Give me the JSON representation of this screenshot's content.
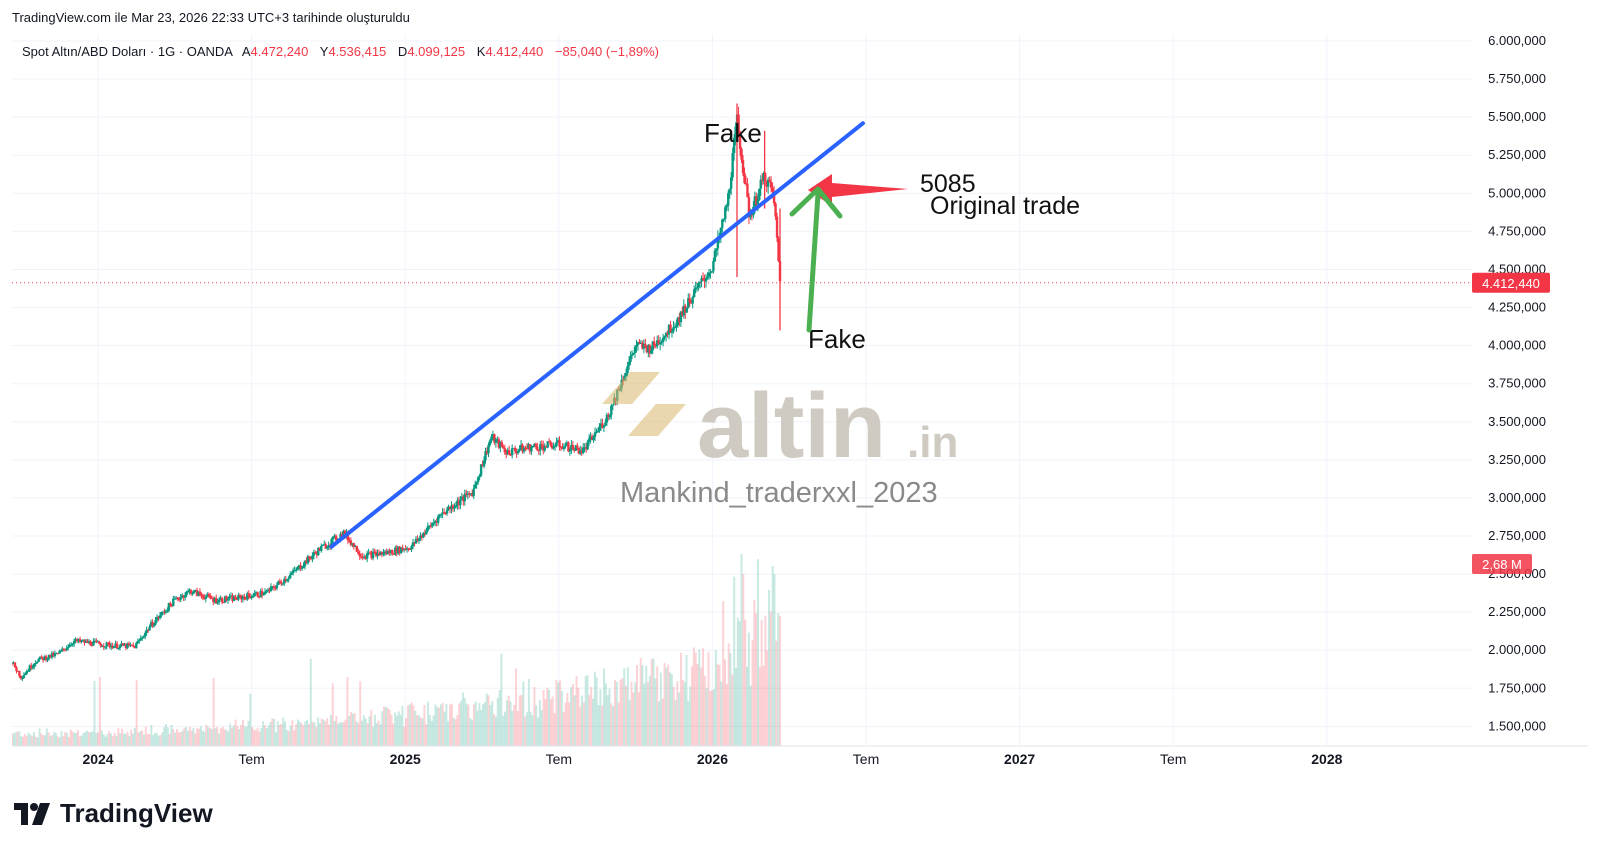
{
  "header": {
    "created_text": "TradingView.com ile Mar 23, 2026 22:33 UTC+3 tarihinde oluşturuldu"
  },
  "symbol_bar": {
    "symbol": "Spot Altın/ABD Doları · 1G · OANDA",
    "open_key": "A",
    "open_val": "4.472,240",
    "high_key": "Y",
    "high_val": "4.536,415",
    "low_key": "D",
    "low_val": "4.099,125",
    "close_key": "K",
    "close_val": "4.412,440",
    "change": "−85,040 (−1,89%)"
  },
  "colors": {
    "up": "#089981",
    "down": "#f23645",
    "trendline": "#2962ff",
    "arrow_red": "#f23645",
    "arrow_green": "#4caf50",
    "watermark_gold": "#d9b66b",
    "watermark_gray": "#c8c2b8",
    "price_label_bg": "#f23645"
  },
  "annotations": {
    "fake_top": "Fake",
    "fake_bottom": "Fake",
    "level": "5085",
    "original_trade": "Original trade"
  },
  "watermark": {
    "brand": "altin",
    "brand_suffix": ".in",
    "author": "Mankind_traderxxl_2023"
  },
  "price_labels": {
    "last_price": "4.412,440",
    "volume": "2,68 M"
  },
  "footer": {
    "brand": "TradingView"
  },
  "chart_data": {
    "type": "candlestick",
    "y_ticks": [
      "6.000,000",
      "5.750,000",
      "5.500,000",
      "5.250,000",
      "5.000,000",
      "4.750,000",
      "4.500,000",
      "4.250,000",
      "4.000,000",
      "3.750,000",
      "3.500,000",
      "3.250,000",
      "3.000,000",
      "2.750,000",
      "2.500,000",
      "2.250,000",
      "2.000,000",
      "1.750,000",
      "1.500,000"
    ],
    "y_tick_values": [
      6000,
      5750,
      5500,
      5250,
      5000,
      4750,
      4500,
      4250,
      4000,
      3750,
      3500,
      3250,
      3000,
      2750,
      2500,
      2250,
      2000,
      1750,
      1500
    ],
    "ylim": [
      1450,
      6000
    ],
    "x_ticks": [
      {
        "label": "2024",
        "t": 2024.0,
        "bold": true
      },
      {
        "label": "Tem",
        "t": 2024.5,
        "bold": false
      },
      {
        "label": "2025",
        "t": 2025.0,
        "bold": true
      },
      {
        "label": "Tem",
        "t": 2025.5,
        "bold": false
      },
      {
        "label": "2026",
        "t": 2026.0,
        "bold": true
      },
      {
        "label": "Tem",
        "t": 2026.5,
        "bold": false
      },
      {
        "label": "2027",
        "t": 2027.0,
        "bold": true
      },
      {
        "label": "Tem",
        "t": 2027.5,
        "bold": false
      },
      {
        "label": "2028",
        "t": 2028.0,
        "bold": true
      }
    ],
    "xlim": [
      2023.72,
      2028.44
    ],
    "last_price": 4412.44,
    "price_path": [
      [
        2023.72,
        1920
      ],
      [
        2023.75,
        1825
      ],
      [
        2023.8,
        1935
      ],
      [
        2023.87,
        1975
      ],
      [
        2023.92,
        2060
      ],
      [
        2023.97,
        2050
      ],
      [
        2024.05,
        2030
      ],
      [
        2024.12,
        2025
      ],
      [
        2024.17,
        2160
      ],
      [
        2024.25,
        2330
      ],
      [
        2024.3,
        2390
      ],
      [
        2024.38,
        2330
      ],
      [
        2024.45,
        2340
      ],
      [
        2024.55,
        2380
      ],
      [
        2024.63,
        2500
      ],
      [
        2024.72,
        2660
      ],
      [
        2024.8,
        2770
      ],
      [
        2024.86,
        2620
      ],
      [
        2024.94,
        2640
      ],
      [
        2025.02,
        2680
      ],
      [
        2025.12,
        2900
      ],
      [
        2025.22,
        3040
      ],
      [
        2025.28,
        3400
      ],
      [
        2025.33,
        3300
      ],
      [
        2025.4,
        3330
      ],
      [
        2025.5,
        3350
      ],
      [
        2025.58,
        3310
      ],
      [
        2025.66,
        3540
      ],
      [
        2025.75,
        4000
      ],
      [
        2025.8,
        3980
      ],
      [
        2025.88,
        4150
      ],
      [
        2025.93,
        4310
      ],
      [
        2026.0,
        4520
      ],
      [
        2026.05,
        4950
      ],
      [
        2026.08,
        5480
      ],
      [
        2026.12,
        4850
      ],
      [
        2026.15,
        5000
      ],
      [
        2026.17,
        5120
      ],
      [
        2026.2,
        4980
      ],
      [
        2026.22,
        4412
      ]
    ],
    "candle_window": [
      2023.72,
      2026.22
    ],
    "volume_window": [
      2023.72,
      2026.22
    ],
    "trendline": {
      "from": [
        2024.76,
        2680
      ],
      "to": [
        2026.49,
        5460
      ]
    },
    "spikes": [
      {
        "t": 2026.08,
        "high": 5590,
        "low": 4450
      },
      {
        "t": 2026.17,
        "high": 5410,
        "low": 4900
      },
      {
        "t": 2026.22,
        "high": 4900,
        "low": 4100
      }
    ]
  }
}
